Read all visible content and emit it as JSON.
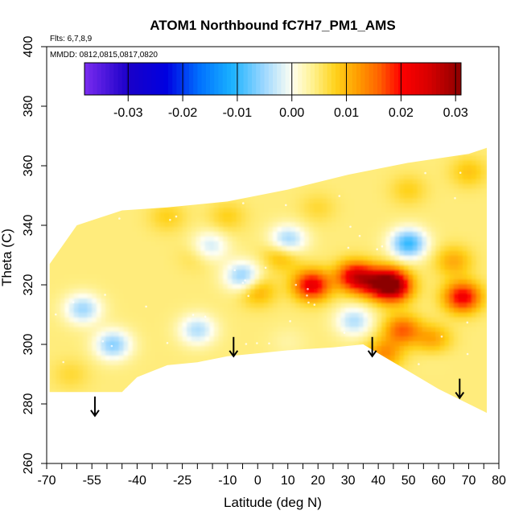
{
  "chart_data": {
    "type": "heatmap",
    "title": "ATOM1 Northbound fC7H7_PM1_AMS",
    "flights_note": "Flts: 6,7,8,9",
    "dates_note": "MMDD: 0812,0815,0817,0820",
    "xlabel": "Latitude (deg N)",
    "ylabel": "Theta (C)",
    "xlim": [
      -70,
      80
    ],
    "ylim": [
      260,
      400
    ],
    "x_ticks_labeled": [
      -70,
      -55,
      -40,
      -25,
      -10,
      0,
      10,
      20,
      30,
      40,
      50,
      60,
      70,
      80
    ],
    "x_ticks_minor": [
      -65,
      -60,
      -50,
      -45,
      -35,
      -30,
      -20,
      -15,
      -5,
      5,
      15,
      25,
      35,
      45,
      55,
      65,
      75
    ],
    "y_ticks": [
      260,
      280,
      300,
      320,
      340,
      360,
      380,
      400
    ],
    "colorbar": {
      "range": [
        -0.038,
        0.031
      ],
      "ticks": [
        -0.03,
        -0.02,
        -0.01,
        0.0,
        0.01,
        0.02,
        0.03
      ],
      "tick_labels": [
        "-0.03",
        "-0.02",
        "-0.01",
        "0.00",
        "0.01",
        "0.02",
        "0.03"
      ],
      "color_stops": [
        {
          "v": -0.038,
          "c": "#7b2cf0"
        },
        {
          "v": -0.03,
          "c": "#1a00c8"
        },
        {
          "v": -0.023,
          "c": "#0000e0"
        },
        {
          "v": -0.017,
          "c": "#0070ff"
        },
        {
          "v": -0.011,
          "c": "#1ab2ff"
        },
        {
          "v": -0.005,
          "c": "#9fd8ff"
        },
        {
          "v": 0.0,
          "c": "#fffff2"
        },
        {
          "v": 0.004,
          "c": "#fff08a"
        },
        {
          "v": 0.008,
          "c": "#ffd21a"
        },
        {
          "v": 0.012,
          "c": "#ff9e00"
        },
        {
          "v": 0.016,
          "c": "#ff6200"
        },
        {
          "v": 0.02,
          "c": "#ff0000"
        },
        {
          "v": 0.025,
          "c": "#d80000"
        },
        {
          "v": 0.031,
          "c": "#8c0000"
        }
      ]
    },
    "coverage": {
      "top": [
        [
          -69,
          327
        ],
        [
          -60,
          340
        ],
        [
          -45,
          345
        ],
        [
          -30,
          346
        ],
        [
          -10,
          348
        ],
        [
          10,
          352
        ],
        [
          30,
          357
        ],
        [
          50,
          361
        ],
        [
          70,
          364
        ],
        [
          76,
          366
        ]
      ],
      "bottom": [
        [
          -69,
          284
        ],
        [
          -45,
          284
        ],
        [
          -40,
          289
        ],
        [
          -30,
          293
        ],
        [
          -20,
          294
        ],
        [
          -10,
          296
        ],
        [
          0,
          297
        ],
        [
          10,
          298
        ],
        [
          25,
          299
        ],
        [
          35,
          300
        ],
        [
          40,
          297
        ],
        [
          50,
          291
        ],
        [
          60,
          285
        ],
        [
          70,
          280
        ],
        [
          76,
          277
        ]
      ]
    },
    "features": [
      {
        "lat": 32,
        "theta": 323,
        "val": 0.022
      },
      {
        "lat": 18,
        "theta": 320,
        "val": 0.023
      },
      {
        "lat": 38,
        "theta": 321,
        "val": 0.017
      },
      {
        "lat": 44,
        "theta": 321,
        "val": 0.02
      },
      {
        "lat": 45,
        "theta": 319,
        "val": 0.019
      },
      {
        "lat": 58,
        "theta": 301,
        "val": 0.019
      },
      {
        "lat": 68,
        "theta": 316,
        "val": 0.022
      },
      {
        "lat": 48,
        "theta": 305,
        "val": 0.016
      },
      {
        "lat": 42,
        "theta": 297,
        "val": 0.013
      },
      {
        "lat": 8,
        "theta": 330,
        "val": 0.011
      },
      {
        "lat": 0,
        "theta": 318,
        "val": 0.011
      },
      {
        "lat": -30,
        "theta": 343,
        "val": 0.008
      },
      {
        "lat": -10,
        "theta": 343,
        "val": 0.008
      },
      {
        "lat": 20,
        "theta": 346,
        "val": 0.007
      },
      {
        "lat": 50,
        "theta": 352,
        "val": 0.008
      },
      {
        "lat": 70,
        "theta": 358,
        "val": 0.009
      },
      {
        "lat": -20,
        "theta": 330,
        "val": 0.007
      },
      {
        "lat": 65,
        "theta": 328,
        "val": 0.011
      },
      {
        "lat": -5,
        "theta": 323,
        "val": -0.006
      },
      {
        "lat": -16,
        "theta": 333,
        "val": -0.003
      },
      {
        "lat": 10,
        "theta": 335,
        "val": -0.006
      },
      {
        "lat": 50,
        "theta": 334,
        "val": -0.01
      },
      {
        "lat": -58,
        "theta": 312,
        "val": -0.005
      },
      {
        "lat": -48,
        "theta": 300,
        "val": -0.006
      },
      {
        "lat": -20,
        "theta": 305,
        "val": -0.004
      },
      {
        "lat": 32,
        "theta": 308,
        "val": -0.004
      },
      {
        "lat": 58,
        "theta": 300,
        "val": -0.004
      },
      {
        "lat": -62,
        "theta": 290,
        "val": 0.007
      },
      {
        "lat": 10,
        "theta": 301,
        "val": 0.003
      }
    ],
    "arrows": [
      {
        "lat": -54,
        "theta": 276
      },
      {
        "lat": -8,
        "theta": 296
      },
      {
        "lat": 38,
        "theta": 296
      },
      {
        "lat": 67,
        "theta": 282
      }
    ]
  }
}
